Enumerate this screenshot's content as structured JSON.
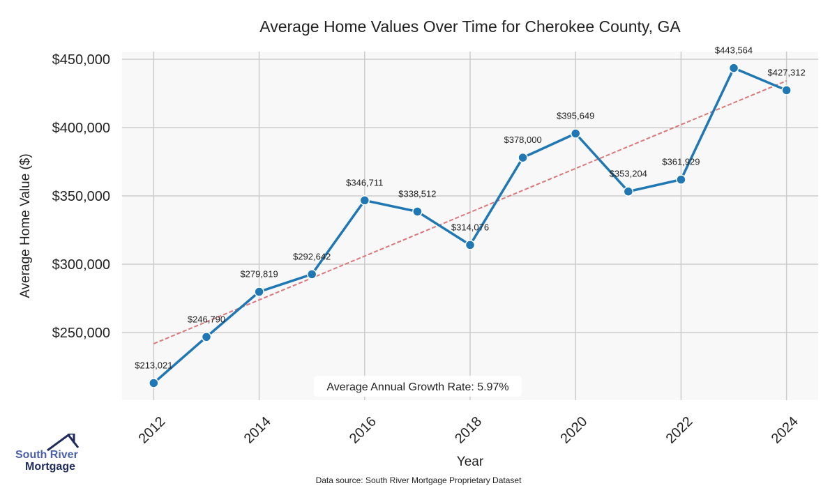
{
  "chart_data": {
    "type": "line",
    "title": "Average Home Values Over Time for Cherokee County, GA",
    "xlabel": "Year",
    "ylabel": "Average Home Value ($)",
    "x": [
      2012,
      2013,
      2014,
      2015,
      2016,
      2017,
      2018,
      2019,
      2020,
      2021,
      2022,
      2023,
      2024
    ],
    "series": [
      {
        "name": "Average Home Value",
        "color": "#1f77b4",
        "values": [
          213021,
          246790,
          279819,
          292642,
          346711,
          338512,
          314076,
          378000,
          395649,
          353204,
          361929,
          443564,
          427312
        ],
        "labels": [
          "$213,021",
          "$246,790",
          "$279,819",
          "$292,642",
          "$346,711",
          "$338,512",
          "$314,076",
          "$378,000",
          "$395,649",
          "$353,204",
          "$361,929",
          "$443,564",
          "$427,312"
        ]
      }
    ],
    "trend": {
      "name": "Trend",
      "color": "#d9777a",
      "start": [
        2012,
        241800
      ],
      "end": [
        2024,
        434200
      ]
    },
    "xlim": [
      2011.4,
      2024.6
    ],
    "ylim": [
      200500,
      455600
    ],
    "xticks": [
      2012,
      2014,
      2016,
      2018,
      2020,
      2022,
      2024
    ],
    "xtick_labels": [
      "2012",
      "2014",
      "2016",
      "2018",
      "2020",
      "2022",
      "2024"
    ],
    "yticks": [
      250000,
      300000,
      350000,
      400000,
      450000
    ],
    "ytick_labels": [
      "$250,000",
      "$300,000",
      "$350,000",
      "$400,000",
      "$450,000"
    ],
    "grid": true,
    "annotation": "Average Annual Growth Rate: 5.97%"
  },
  "footer": {
    "source": "Data source: South River Mortgage Proprietary Dataset"
  },
  "logo": {
    "line1": "South River",
    "line2": "Mortgage"
  }
}
